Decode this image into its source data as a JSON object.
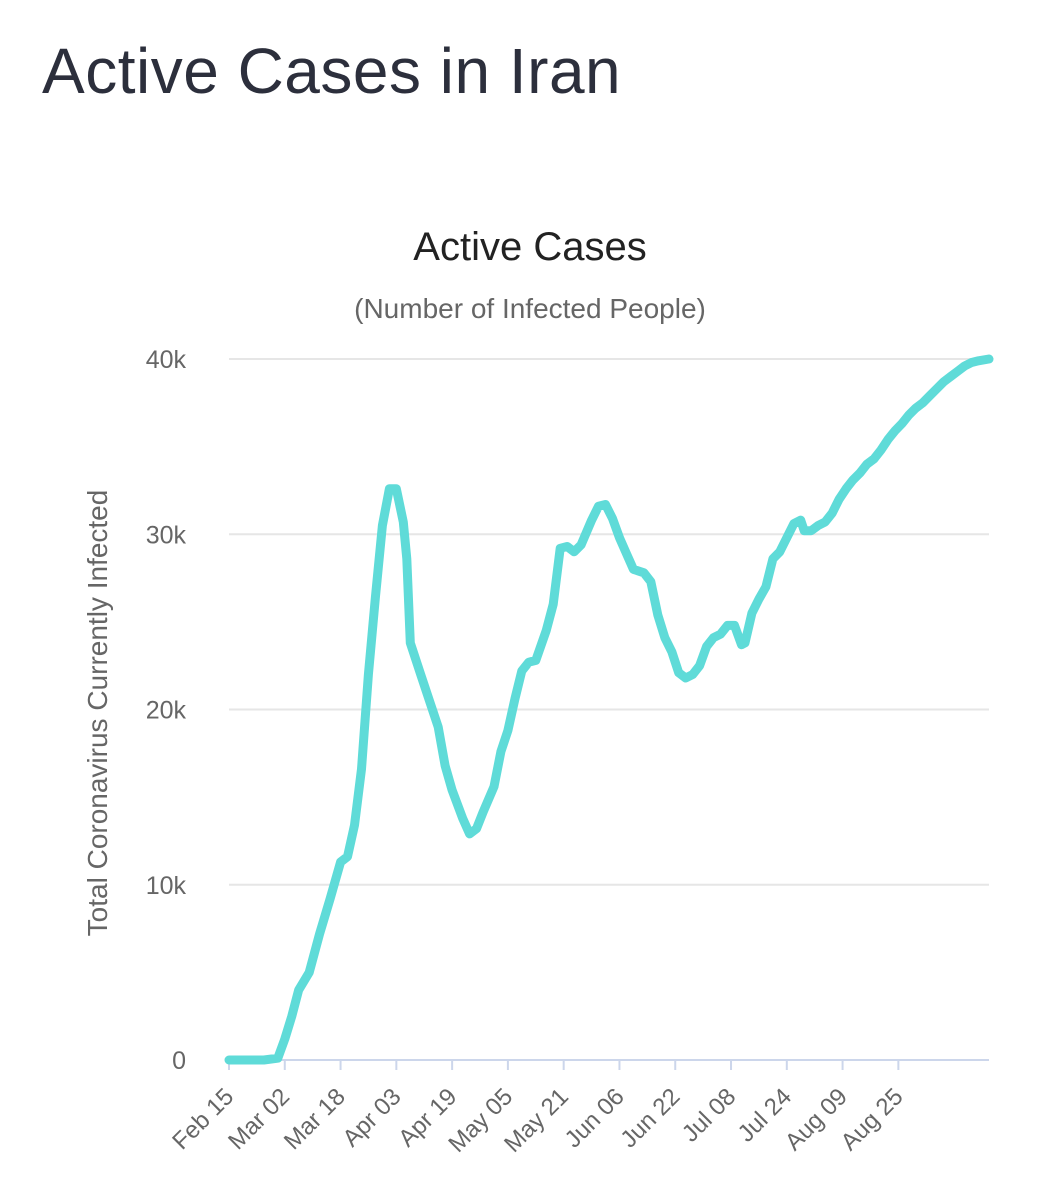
{
  "page": {
    "title": "Active Cases in Iran"
  },
  "chart_data": {
    "type": "line",
    "title": "Active Cases",
    "subtitle": "(Number of Infected People)",
    "xlabel": "",
    "ylabel": "Total Coronavirus Currently Infected",
    "ylim": [
      0,
      40000
    ],
    "yticks": [
      0,
      10000,
      20000,
      30000,
      40000
    ],
    "ytick_labels": [
      "0",
      "10k",
      "20k",
      "30k",
      "40k"
    ],
    "x_tick_labels": [
      "Feb 15",
      "Mar 02",
      "Mar 18",
      "Apr 03",
      "Apr 19",
      "May 05",
      "May 21",
      "Jun 06",
      "Jun 22",
      "Jul 08",
      "Jul 24",
      "Aug 09",
      "Aug 25"
    ],
    "x_tick_days": [
      0,
      16,
      32,
      48,
      64,
      80,
      96,
      112,
      128,
      144,
      160,
      176,
      192
    ],
    "xlim_days": [
      0,
      218
    ],
    "legend": "none",
    "grid": true,
    "line_color": "#5fdbd8",
    "series": [
      {
        "name": "Active Cases",
        "color": "#5fdbd8",
        "points": [
          [
            0,
            0
          ],
          [
            10,
            0
          ],
          [
            14,
            100
          ],
          [
            16,
            1200
          ],
          [
            18,
            2500
          ],
          [
            20,
            4000
          ],
          [
            23,
            5000
          ],
          [
            26,
            7200
          ],
          [
            29,
            9200
          ],
          [
            32,
            11300
          ],
          [
            34,
            11600
          ],
          [
            36,
            13400
          ],
          [
            38,
            16600
          ],
          [
            40,
            22000
          ],
          [
            42,
            26400
          ],
          [
            44,
            30500
          ],
          [
            46,
            32600
          ],
          [
            48,
            32600
          ],
          [
            50,
            30700
          ],
          [
            51,
            28600
          ],
          [
            52,
            23800
          ],
          [
            55,
            22000
          ],
          [
            58,
            20200
          ],
          [
            60,
            19000
          ],
          [
            62,
            16800
          ],
          [
            64,
            15400
          ],
          [
            67,
            13800
          ],
          [
            69,
            12900
          ],
          [
            71,
            13200
          ],
          [
            73,
            14200
          ],
          [
            76,
            15600
          ],
          [
            78,
            17600
          ],
          [
            80,
            18800
          ],
          [
            82,
            20600
          ],
          [
            84,
            22200
          ],
          [
            86,
            22700
          ],
          [
            88,
            22800
          ],
          [
            91,
            24500
          ],
          [
            93,
            26000
          ],
          [
            95,
            29200
          ],
          [
            97,
            29300
          ],
          [
            99,
            29000
          ],
          [
            101,
            29400
          ],
          [
            104,
            30800
          ],
          [
            106,
            31600
          ],
          [
            108,
            31700
          ],
          [
            110,
            30900
          ],
          [
            112,
            29800
          ],
          [
            114,
            28900
          ],
          [
            116,
            28000
          ],
          [
            119,
            27800
          ],
          [
            121,
            27300
          ],
          [
            123,
            25400
          ],
          [
            125,
            24100
          ],
          [
            127,
            23300
          ],
          [
            129,
            22100
          ],
          [
            131,
            21800
          ],
          [
            133,
            22000
          ],
          [
            135,
            22500
          ],
          [
            137,
            23600
          ],
          [
            139,
            24100
          ],
          [
            141,
            24300
          ],
          [
            143,
            24800
          ],
          [
            145,
            24800
          ],
          [
            147,
            23700
          ],
          [
            148,
            23800
          ],
          [
            150,
            25500
          ],
          [
            152,
            26300
          ],
          [
            154,
            27000
          ],
          [
            156,
            28600
          ],
          [
            158,
            29000
          ],
          [
            160,
            29800
          ],
          [
            162,
            30600
          ],
          [
            164,
            30800
          ],
          [
            165,
            30200
          ],
          [
            167,
            30200
          ],
          [
            169,
            30500
          ],
          [
            171,
            30700
          ],
          [
            173,
            31200
          ],
          [
            175,
            32000
          ],
          [
            177,
            32600
          ],
          [
            179,
            33100
          ],
          [
            181,
            33500
          ],
          [
            183,
            34000
          ],
          [
            185,
            34300
          ],
          [
            187,
            34800
          ],
          [
            189,
            35400
          ],
          [
            191,
            35900
          ],
          [
            193,
            36300
          ],
          [
            195,
            36800
          ],
          [
            197,
            37200
          ],
          [
            199,
            37500
          ],
          [
            201,
            37900
          ],
          [
            203,
            38300
          ],
          [
            205,
            38700
          ],
          [
            207,
            39000
          ],
          [
            209,
            39300
          ],
          [
            211,
            39600
          ],
          [
            213,
            39800
          ],
          [
            215,
            39900
          ],
          [
            218,
            40000
          ]
        ]
      }
    ]
  }
}
